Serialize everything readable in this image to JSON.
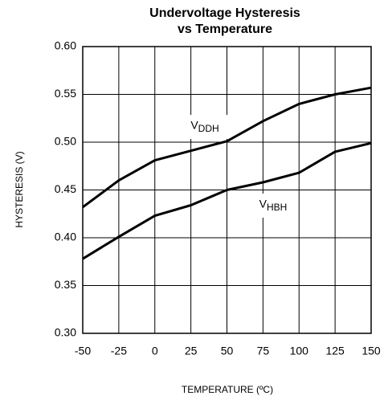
{
  "chart_data": {
    "type": "line",
    "title": "Undervoltage Hysteresis",
    "subtitle": "vs Temperature",
    "x_label": "TEMPERATURE (ºC)",
    "y_label": "HYSTERESIS (V)",
    "x": [
      -50,
      -25,
      0,
      25,
      50,
      75,
      100,
      125,
      150
    ],
    "series": [
      {
        "name": "VDDH",
        "color": "#000000",
        "values": [
          0.432,
          0.46,
          0.481,
          0.491,
          0.501,
          0.522,
          0.54,
          0.55,
          0.557
        ]
      },
      {
        "name": "VHBH",
        "color": "#000000",
        "values": [
          0.378,
          0.401,
          0.423,
          0.434,
          0.45,
          0.458,
          0.468,
          0.49,
          0.499
        ]
      }
    ],
    "xlim": [
      -50,
      150
    ],
    "xticks": [
      -50,
      -25,
      0,
      25,
      50,
      75,
      100,
      125,
      150
    ],
    "ylim": [
      0.3,
      0.6
    ],
    "yticks": [
      {
        "value": 0.3,
        "label": "0.30"
      },
      {
        "value": 0.35,
        "label": "0.35"
      },
      {
        "value": 0.4,
        "label": "0.40"
      },
      {
        "value": 0.45,
        "label": "0.45"
      },
      {
        "value": 0.5,
        "label": "0.50"
      },
      {
        "value": 0.55,
        "label": "0.55"
      },
      {
        "value": 0.6,
        "label": "0.60"
      }
    ],
    "grid": true
  }
}
